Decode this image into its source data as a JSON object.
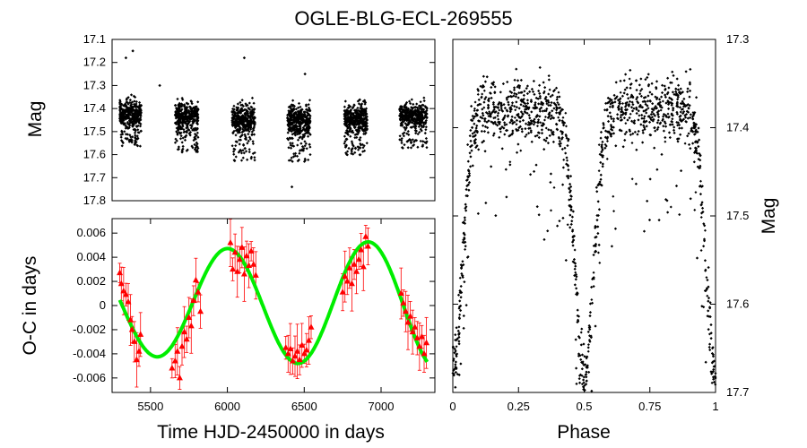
{
  "chart_data": [
    {
      "id": "light-curve",
      "type": "scatter",
      "title": "OGLE-BLG-ECL-269555",
      "xlabel": "",
      "ylabel": "Mag",
      "xlim": [
        5250,
        7350
      ],
      "ylim": [
        17.8,
        17.1
      ],
      "y_inverted": true,
      "xticks": [],
      "yticks": [
        "17.1",
        "17.2",
        "17.3",
        "17.4",
        "17.5",
        "17.6",
        "17.7",
        "17.8"
      ],
      "point_color": "#000000",
      "seasons": [
        {
          "x_range": [
            5300,
            5440
          ],
          "mag_center": 17.42,
          "mag_spread": 0.08
        },
        {
          "x_range": [
            5660,
            5810
          ],
          "mag_center": 17.43,
          "mag_spread": 0.09
        },
        {
          "x_range": [
            6030,
            6180
          ],
          "mag_center": 17.45,
          "mag_spread": 0.1
        },
        {
          "x_range": [
            6390,
            6540
          ],
          "mag_center": 17.45,
          "mag_spread": 0.1
        },
        {
          "x_range": [
            6760,
            6910
          ],
          "mag_center": 17.44,
          "mag_spread": 0.09
        },
        {
          "x_range": [
            7120,
            7300
          ],
          "mag_center": 17.43,
          "mag_spread": 0.08
        }
      ],
      "outliers": [
        {
          "x": 5385,
          "y": 17.15
        },
        {
          "x": 5340,
          "y": 17.18
        },
        {
          "x": 6110,
          "y": 17.18
        },
        {
          "x": 6505,
          "y": 17.25
        },
        {
          "x": 6420,
          "y": 17.74
        },
        {
          "x": 5560,
          "y": 17.3
        }
      ]
    },
    {
      "id": "o-c-diagram",
      "type": "scatter",
      "xlabel": "Time HJD-2450000 in days",
      "ylabel": "O-C in days",
      "xlim": [
        5250,
        7350
      ],
      "ylim": [
        -0.0072,
        0.0072
      ],
      "xticks": [
        "5500",
        "6000",
        "6500",
        "7000"
      ],
      "yticks": [
        "0.006",
        "0.004",
        "0.002",
        "0",
        "-0.002",
        "-0.004",
        "-0.006"
      ],
      "points_color": "#ff0000",
      "fit_color": "#00ee00",
      "points": [
        [
          5300,
          0.0027
        ],
        [
          5310,
          0.0018
        ],
        [
          5325,
          0.0012
        ],
        [
          5340,
          0.0009
        ],
        [
          5355,
          0.0003
        ],
        [
          5370,
          -0.0012
        ],
        [
          5380,
          -0.002
        ],
        [
          5395,
          -0.003
        ],
        [
          5410,
          -0.0045
        ],
        [
          5425,
          -0.0038
        ],
        [
          5435,
          -0.0024
        ],
        [
          5640,
          -0.0052
        ],
        [
          5660,
          -0.0046
        ],
        [
          5675,
          -0.0038
        ],
        [
          5690,
          -0.006
        ],
        [
          5705,
          -0.0034
        ],
        [
          5720,
          -0.0022
        ],
        [
          5735,
          -0.0028
        ],
        [
          5750,
          -0.001
        ],
        [
          5765,
          -0.0017
        ],
        [
          5780,
          0.0004
        ],
        [
          5795,
          0.0021
        ],
        [
          5810,
          0.0011
        ],
        [
          5825,
          -0.0005
        ],
        [
          6020,
          0.0052
        ],
        [
          6035,
          0.003
        ],
        [
          6050,
          0.0044
        ],
        [
          6065,
          0.0028
        ],
        [
          6080,
          0.0038
        ],
        [
          6095,
          0.0048
        ],
        [
          6110,
          0.0026
        ],
        [
          6125,
          0.0041
        ],
        [
          6140,
          0.0033
        ],
        [
          6155,
          0.0045
        ],
        [
          6170,
          0.0034
        ],
        [
          6185,
          0.0025
        ],
        [
          6380,
          -0.0035
        ],
        [
          6395,
          -0.004
        ],
        [
          6410,
          -0.0036
        ],
        [
          6425,
          -0.0046
        ],
        [
          6440,
          -0.0042
        ],
        [
          6455,
          -0.0038
        ],
        [
          6470,
          -0.0045
        ],
        [
          6485,
          -0.0033
        ],
        [
          6500,
          -0.004
        ],
        [
          6515,
          -0.0037
        ],
        [
          6530,
          -0.0029
        ],
        [
          6545,
          -0.0018
        ],
        [
          6750,
          0.0011
        ],
        [
          6765,
          0.0024
        ],
        [
          6780,
          0.002
        ],
        [
          6795,
          0.0031
        ],
        [
          6810,
          0.0018
        ],
        [
          6825,
          0.0034
        ],
        [
          6840,
          0.0028
        ],
        [
          6855,
          0.0038
        ],
        [
          6870,
          0.0046
        ],
        [
          6885,
          0.0032
        ],
        [
          6900,
          0.0057
        ],
        [
          6915,
          0.0049
        ],
        [
          7130,
          0.001
        ],
        [
          7145,
          0.0002
        ],
        [
          7160,
          -0.0005
        ],
        [
          7175,
          -0.0014
        ],
        [
          7190,
          -0.0009
        ],
        [
          7205,
          -0.0022
        ],
        [
          7220,
          -0.0018
        ],
        [
          7235,
          -0.0027
        ],
        [
          7250,
          -0.0034
        ],
        [
          7265,
          -0.0026
        ],
        [
          7280,
          -0.004
        ],
        [
          7295,
          -0.0031
        ]
      ],
      "fit": {
        "offset": 0.0001,
        "amp_start": 0.0042,
        "amp_slope": 6e-07,
        "period": 915,
        "phase_ref": 5770
      }
    },
    {
      "id": "phased-light-curve",
      "type": "scatter",
      "xlabel": "Phase",
      "ylabel": "Mag",
      "ylabel_side": "right",
      "xlim": [
        0,
        1
      ],
      "ylim": [
        17.7,
        17.3
      ],
      "y_inverted": true,
      "xticks": [
        "0",
        "0.25",
        "0.5",
        "0.75",
        "1"
      ],
      "yticks": [
        "17.3",
        "17.4",
        "17.5",
        "17.6",
        "17.7"
      ],
      "point_color": "#000000",
      "max_mag": 17.38,
      "eclipse_depth": 0.3,
      "eclipse_width": 0.05,
      "eclipse_phases": [
        0,
        0.5,
        1
      ]
    }
  ]
}
